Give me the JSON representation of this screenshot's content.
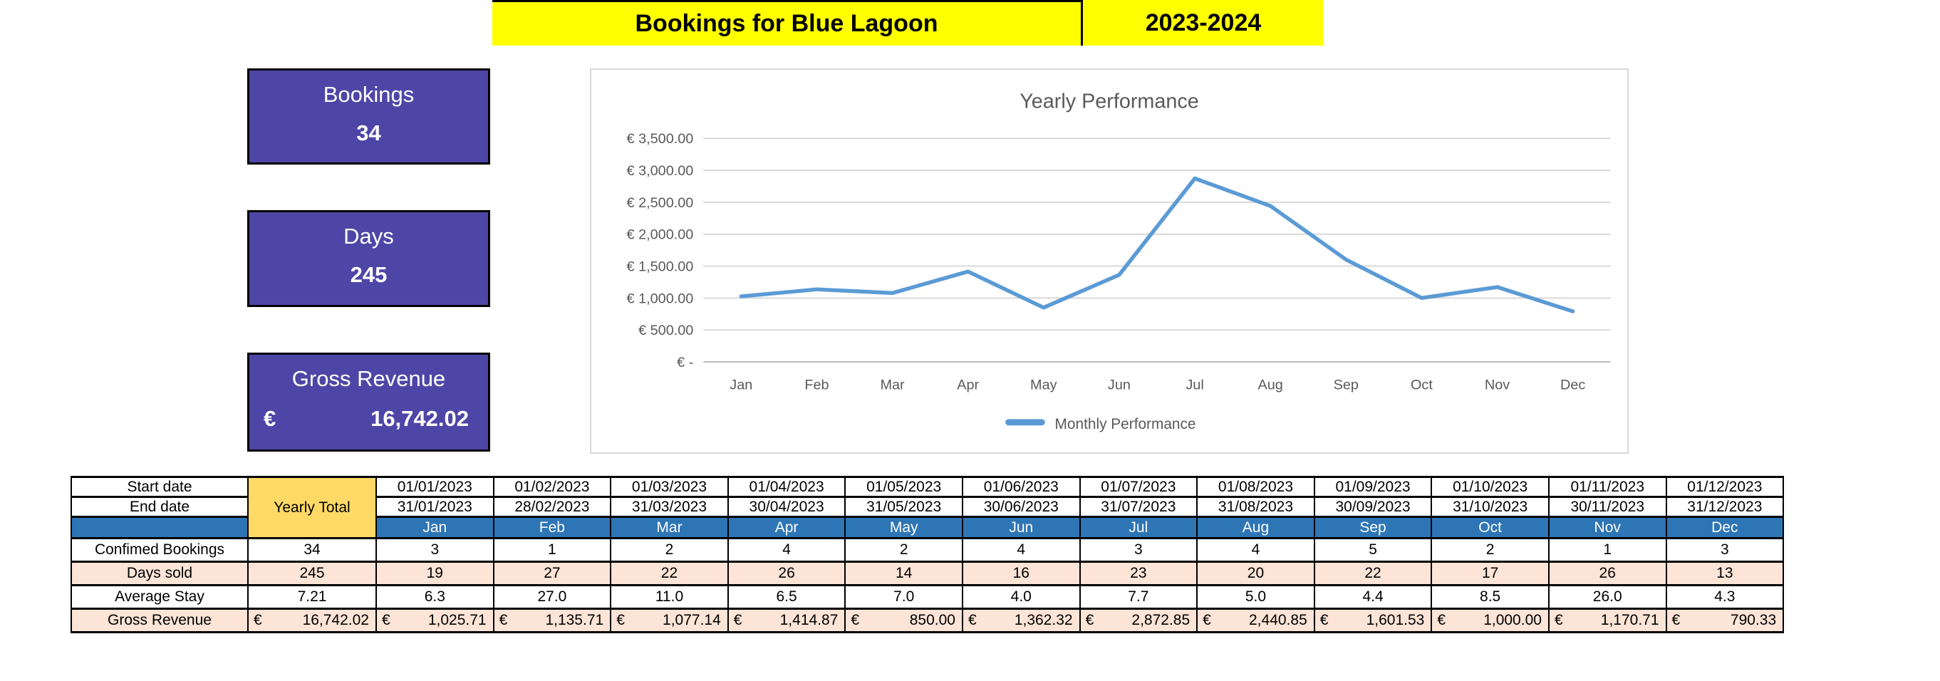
{
  "banner": {
    "title": "Bookings for Blue Lagoon",
    "period": "2023-2024"
  },
  "kpis": [
    {
      "label": "Bookings",
      "value": "34"
    },
    {
      "label": "Days",
      "value": "245"
    },
    {
      "label": "Gross Revenue",
      "currency_symbol": "€",
      "value": "16,742.02"
    }
  ],
  "chart_data": {
    "type": "line",
    "title": "Yearly Performance",
    "categories": [
      "Jan",
      "Feb",
      "Mar",
      "Apr",
      "May",
      "Jun",
      "Jul",
      "Aug",
      "Sep",
      "Oct",
      "Nov",
      "Dec"
    ],
    "series": [
      {
        "name": "Monthly Performance",
        "values": [
          1025.71,
          1135.71,
          1077.14,
          1414.87,
          850.0,
          1362.32,
          2872.85,
          2440.85,
          1601.53,
          1000.0,
          1170.71,
          790.33
        ]
      }
    ],
    "ylim": [
      0,
      3500
    ],
    "y_ticks": [
      {
        "value": 3500,
        "label": "€ 3,500.00"
      },
      {
        "value": 3000,
        "label": "€ 3,000.00"
      },
      {
        "value": 2500,
        "label": "€ 2,500.00"
      },
      {
        "value": 2000,
        "label": "€ 2,000.00"
      },
      {
        "value": 1500,
        "label": "€ 1,500.00"
      },
      {
        "value": 1000,
        "label": "€ 1,000.00"
      },
      {
        "value": 500,
        "label": "€ 500.00"
      },
      {
        "value": 0,
        "label": "€ -"
      }
    ],
    "grid": true,
    "legend_position": "bottom",
    "xlabel": "",
    "ylabel": ""
  },
  "table": {
    "corner_labels": {
      "start": "Start date",
      "end": "End date"
    },
    "yearly_total_label": "Yearly Total",
    "start_dates": [
      "01/01/2023",
      "01/02/2023",
      "01/03/2023",
      "01/04/2023",
      "01/05/2023",
      "01/06/2023",
      "01/07/2023",
      "01/08/2023",
      "01/09/2023",
      "01/10/2023",
      "01/11/2023",
      "01/12/2023"
    ],
    "end_dates": [
      "31/01/2023",
      "28/02/2023",
      "31/03/2023",
      "30/04/2023",
      "31/05/2023",
      "30/06/2023",
      "31/07/2023",
      "31/08/2023",
      "30/09/2023",
      "31/10/2023",
      "30/11/2023",
      "31/12/2023"
    ],
    "months": [
      "Jan",
      "Feb",
      "Mar",
      "Apr",
      "May",
      "Jun",
      "Jul",
      "Aug",
      "Sep",
      "Oct",
      "Nov",
      "Dec"
    ],
    "rows": [
      {
        "label": "Confimed Bookings",
        "yearly": "34",
        "shaded": false,
        "currency": false,
        "values": [
          "3",
          "1",
          "2",
          "4",
          "2",
          "4",
          "3",
          "4",
          "5",
          "2",
          "1",
          "3"
        ]
      },
      {
        "label": "Days sold",
        "yearly": "245",
        "shaded": true,
        "currency": false,
        "values": [
          "19",
          "27",
          "22",
          "26",
          "14",
          "16",
          "23",
          "20",
          "22",
          "17",
          "26",
          "13"
        ]
      },
      {
        "label": "Average Stay",
        "yearly": "7.21",
        "shaded": false,
        "currency": false,
        "values": [
          "6.3",
          "27.0",
          "11.0",
          "6.5",
          "7.0",
          "4.0",
          "7.7",
          "5.0",
          "4.4",
          "8.5",
          "26.0",
          "4.3"
        ]
      },
      {
        "label": "Gross Revenue",
        "yearly": "16,742.02",
        "shaded": true,
        "currency": true,
        "currency_symbol": "€",
        "values": [
          "1,025.71",
          "1,135.71",
          "1,077.14",
          "1,414.87",
          "850.00",
          "1,362.32",
          "2,872.85",
          "2,440.85",
          "1,601.53",
          "1,000.00",
          "1,170.71",
          "790.33"
        ]
      }
    ]
  },
  "colors": {
    "banner_bg": "#ffff00",
    "kpi_bg": "#4e46a6",
    "kpi_text": "#ffffff",
    "header_blue": "#2e75b6",
    "shade_pink": "#fce4d6",
    "yearly_total_bg": "#ffd966",
    "line_blue": "#5b9bd5",
    "chart_text": "#595959",
    "chart_border": "#d9d9d9",
    "grid_line": "#d9d9d9",
    "axis_line": "#bfbfbf"
  }
}
